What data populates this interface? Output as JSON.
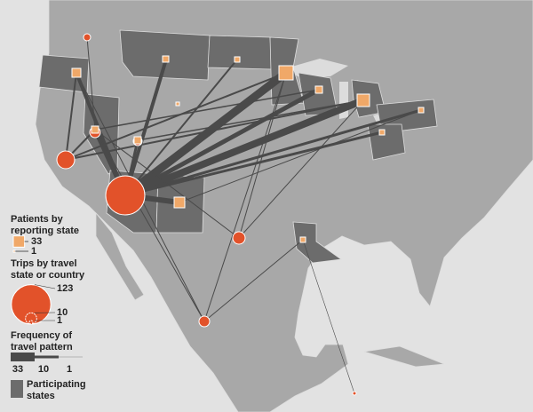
{
  "legend": {
    "patients": {
      "title": [
        "Patients by",
        "reporting state"
      ],
      "values": [
        33,
        1
      ]
    },
    "trips": {
      "title": [
        "Trips by travel",
        "state or country"
      ],
      "values": [
        123,
        10,
        1
      ]
    },
    "frequency": {
      "title": [
        "Frequency of",
        "travel pattern"
      ],
      "values": [
        33,
        10,
        1
      ]
    },
    "participating": {
      "label": [
        "Participating",
        "states"
      ]
    }
  }
}
